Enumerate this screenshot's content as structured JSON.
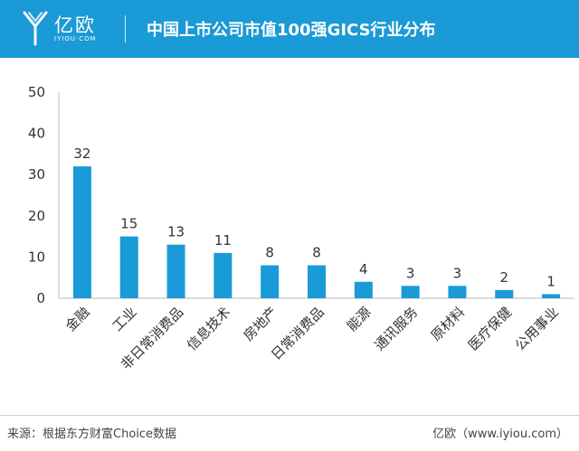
{
  "header": {
    "logo_text": "亿欧",
    "logo_sub": "IYIOU·COM",
    "title": "中国上市公司市值100强GICS行业分布",
    "background": "#1a9ad6"
  },
  "chart_data": {
    "type": "bar",
    "title": "中国上市公司市值100强GICS行业分布",
    "categories": [
      "金融",
      "工业",
      "非日常消费品",
      "信息技术",
      "房地产",
      "日常消费品",
      "能源",
      "通讯服务",
      "原材料",
      "医疗保健",
      "公用事业"
    ],
    "values": [
      32,
      15,
      13,
      11,
      8,
      8,
      4,
      3,
      3,
      2,
      1
    ],
    "yticks": [
      0,
      10,
      20,
      30,
      40,
      50
    ],
    "ylim": [
      0,
      50
    ],
    "xlabel": "",
    "ylabel": "",
    "bar_color": "#1a9ad6",
    "grid": false,
    "data_labels": true
  },
  "footer": {
    "source": "来源：根据东方财富Choice数据",
    "credit": "亿欧（www.iyiou.com）"
  }
}
